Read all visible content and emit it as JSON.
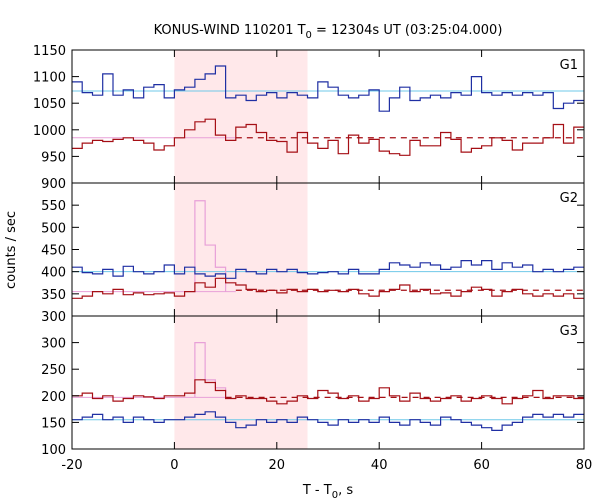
{
  "chart_data": {
    "type": "line",
    "title": "KONUS-WIND 110201 T",
    "title_sub": "0",
    "title_rest": " = 12304s UT (03:25:04.000)",
    "xlabel": "T - T",
    "xlabel_sub": "0",
    "xlabel_rest": ", s",
    "ylabel": "counts / sec",
    "xlim": [
      -20,
      80
    ],
    "x_ticks": [
      -20,
      0,
      20,
      40,
      60,
      80
    ],
    "x_tick_labels": [
      "-20",
      "0",
      "20",
      "40",
      "60",
      "80"
    ],
    "shaded_interval": [
      0,
      26
    ],
    "shade_color": "#ffe8ea",
    "colors": {
      "blue": "#1f2fa3",
      "red": "#a50f15",
      "cyan": "#6fc8e8",
      "pink": "#e8a0d8",
      "dashed": "#a50f15",
      "frame": "#000000"
    },
    "panels": [
      {
        "label": "G1",
        "ylim": [
          900,
          1150
        ],
        "y_ticks": [
          900,
          950,
          1000,
          1050,
          1100,
          1150
        ],
        "y_tick_labels": [
          "900",
          "950",
          "1000",
          "1050",
          "1100",
          "1150"
        ],
        "bin_edges_start": -20,
        "bin_width": 2,
        "blue_series": [
          1090,
          1070,
          1065,
          1105,
          1065,
          1075,
          1060,
          1080,
          1085,
          1060,
          1075,
          1080,
          1095,
          1105,
          1120,
          1060,
          1065,
          1055,
          1065,
          1070,
          1060,
          1070,
          1065,
          1060,
          1090,
          1080,
          1065,
          1060,
          1065,
          1075,
          1035,
          1060,
          1080,
          1055,
          1060,
          1065,
          1060,
          1070,
          1065,
          1100,
          1070,
          1065,
          1070,
          1065,
          1070,
          1065,
          1070,
          1040,
          1050,
          1055
        ],
        "red_series": [
          965,
          975,
          980,
          978,
          982,
          985,
          980,
          975,
          962,
          970,
          985,
          1000,
          1015,
          1020,
          990,
          980,
          1005,
          1010,
          995,
          980,
          978,
          958,
          995,
          975,
          965,
          980,
          955,
          990,
          975,
          982,
          960,
          955,
          952,
          980,
          970,
          970,
          995,
          982,
          958,
          965,
          970,
          985,
          980,
          962,
          975,
          975,
          985,
          1010,
          975,
          1005
        ],
        "cyan_level": 1073,
        "pink_level": 985,
        "dashed_level": 985,
        "dashed_start": 12
      },
      {
        "label": "G2",
        "ylim": [
          300,
          600
        ],
        "y_ticks": [
          300,
          350,
          400,
          450,
          500,
          550
        ],
        "y_tick_labels": [
          "300",
          "350",
          "400",
          "450",
          "500",
          "550"
        ],
        "bin_edges_start": -20,
        "bin_width": 2,
        "blue_series": [
          410,
          398,
          395,
          405,
          390,
          412,
          400,
          395,
          400,
          415,
          395,
          410,
          395,
          390,
          395,
          385,
          405,
          400,
          395,
          405,
          400,
          405,
          398,
          395,
          398,
          400,
          395,
          405,
          395,
          395,
          405,
          420,
          415,
          410,
          420,
          415,
          405,
          410,
          425,
          415,
          425,
          405,
          420,
          410,
          415,
          400,
          405,
          400,
          405,
          410
        ],
        "red_series": [
          340,
          345,
          355,
          350,
          360,
          348,
          352,
          348,
          350,
          352,
          345,
          355,
          375,
          365,
          385,
          375,
          370,
          360,
          355,
          358,
          352,
          360,
          355,
          360,
          355,
          358,
          355,
          360,
          350,
          345,
          355,
          360,
          370,
          355,
          360,
          350,
          352,
          345,
          355,
          365,
          360,
          345,
          355,
          360,
          350,
          345,
          350,
          345,
          350,
          340
        ],
        "pink_pulse": [
          [
            4,
            560
          ],
          [
            6,
            460
          ],
          [
            8,
            410
          ]
        ],
        "cyan_level": 400,
        "pink_level": 355,
        "dashed_level": 358,
        "dashed_start": 12
      },
      {
        "label": "G3",
        "ylim": [
          100,
          350
        ],
        "y_ticks": [
          100,
          150,
          200,
          250,
          300
        ],
        "y_tick_labels": [
          "100",
          "150",
          "200",
          "250",
          "300"
        ],
        "bin_edges_start": -20,
        "bin_width": 2,
        "blue_series": [
          155,
          160,
          165,
          155,
          160,
          150,
          160,
          155,
          150,
          155,
          155,
          160,
          165,
          170,
          160,
          150,
          140,
          145,
          155,
          150,
          155,
          150,
          160,
          155,
          150,
          145,
          155,
          150,
          155,
          150,
          160,
          150,
          145,
          155,
          150,
          145,
          160,
          155,
          150,
          145,
          140,
          135,
          145,
          150,
          160,
          165,
          160,
          165,
          160,
          165
        ],
        "red_series": [
          200,
          205,
          195,
          200,
          190,
          195,
          200,
          198,
          195,
          200,
          200,
          205,
          230,
          225,
          210,
          195,
          200,
          195,
          195,
          190,
          185,
          190,
          200,
          195,
          210,
          205,
          195,
          200,
          190,
          195,
          215,
          200,
          190,
          205,
          195,
          190,
          195,
          200,
          190,
          195,
          200,
          195,
          185,
          195,
          200,
          210,
          195,
          200,
          200,
          195
        ],
        "pink_pulse": [
          [
            4,
            300
          ],
          [
            6,
            230
          ],
          [
            8,
            215
          ]
        ],
        "cyan_level": 155,
        "pink_level": 197,
        "dashed_level": 197,
        "dashed_start": 10
      }
    ]
  }
}
